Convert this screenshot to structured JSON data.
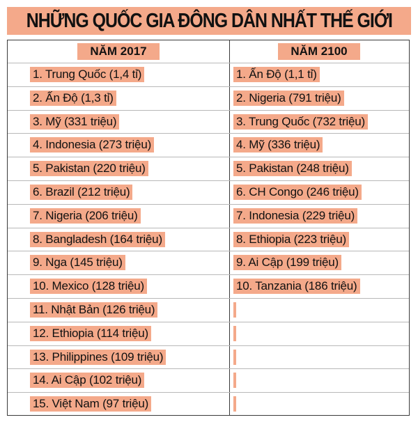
{
  "title": "NHỮNG QUỐC GIA ĐÔNG DÂN NHẤT THẾ GIỚI",
  "columns": [
    "NĂM 2017",
    "NĂM 2100"
  ],
  "rows_2017": [
    "1. Trung Quốc (1,4 tỉ)",
    "2. Ấn Độ (1,3 tỉ)",
    "3. Mỹ (331 triệu)",
    "4. Indonesia (273 triệu)",
    "5. Pakistan (220 triệu)",
    "6. Brazil (212 triệu)",
    "7. Nigeria (206 triệu)",
    "8. Bangladesh (164 triệu)",
    "9. Nga (145 triệu)",
    "10. Mexico (128 triệu)",
    "11. Nhật Bản (126 triệu)",
    "12. Ethiopia (114 triệu)",
    "13. Philippines (109 triệu)",
    "14. Ai Cập (102 triệu)",
    "15. Việt Nam (97 triệu)"
  ],
  "rows_2100": [
    "1. Ấn Độ (1,1 tỉ)",
    "2. Nigeria (791 triệu)",
    "3. Trung Quốc (732 triệu)",
    "4. Mỹ (336 triệu)",
    "5. Pakistan (248 triệu)",
    "6. CH Congo (246 triệu)",
    "7. Indonesia (229 triệu)",
    "8. Ethiopia (223 triệu)",
    "9. Ai Cập (199 triệu)",
    "10. Tanzania (186 triệu)",
    "",
    "",
    "",
    "",
    ""
  ],
  "colors": {
    "highlight": "#f4a98a",
    "border": "#3a3a3a",
    "rule": "#b8b8b8"
  }
}
